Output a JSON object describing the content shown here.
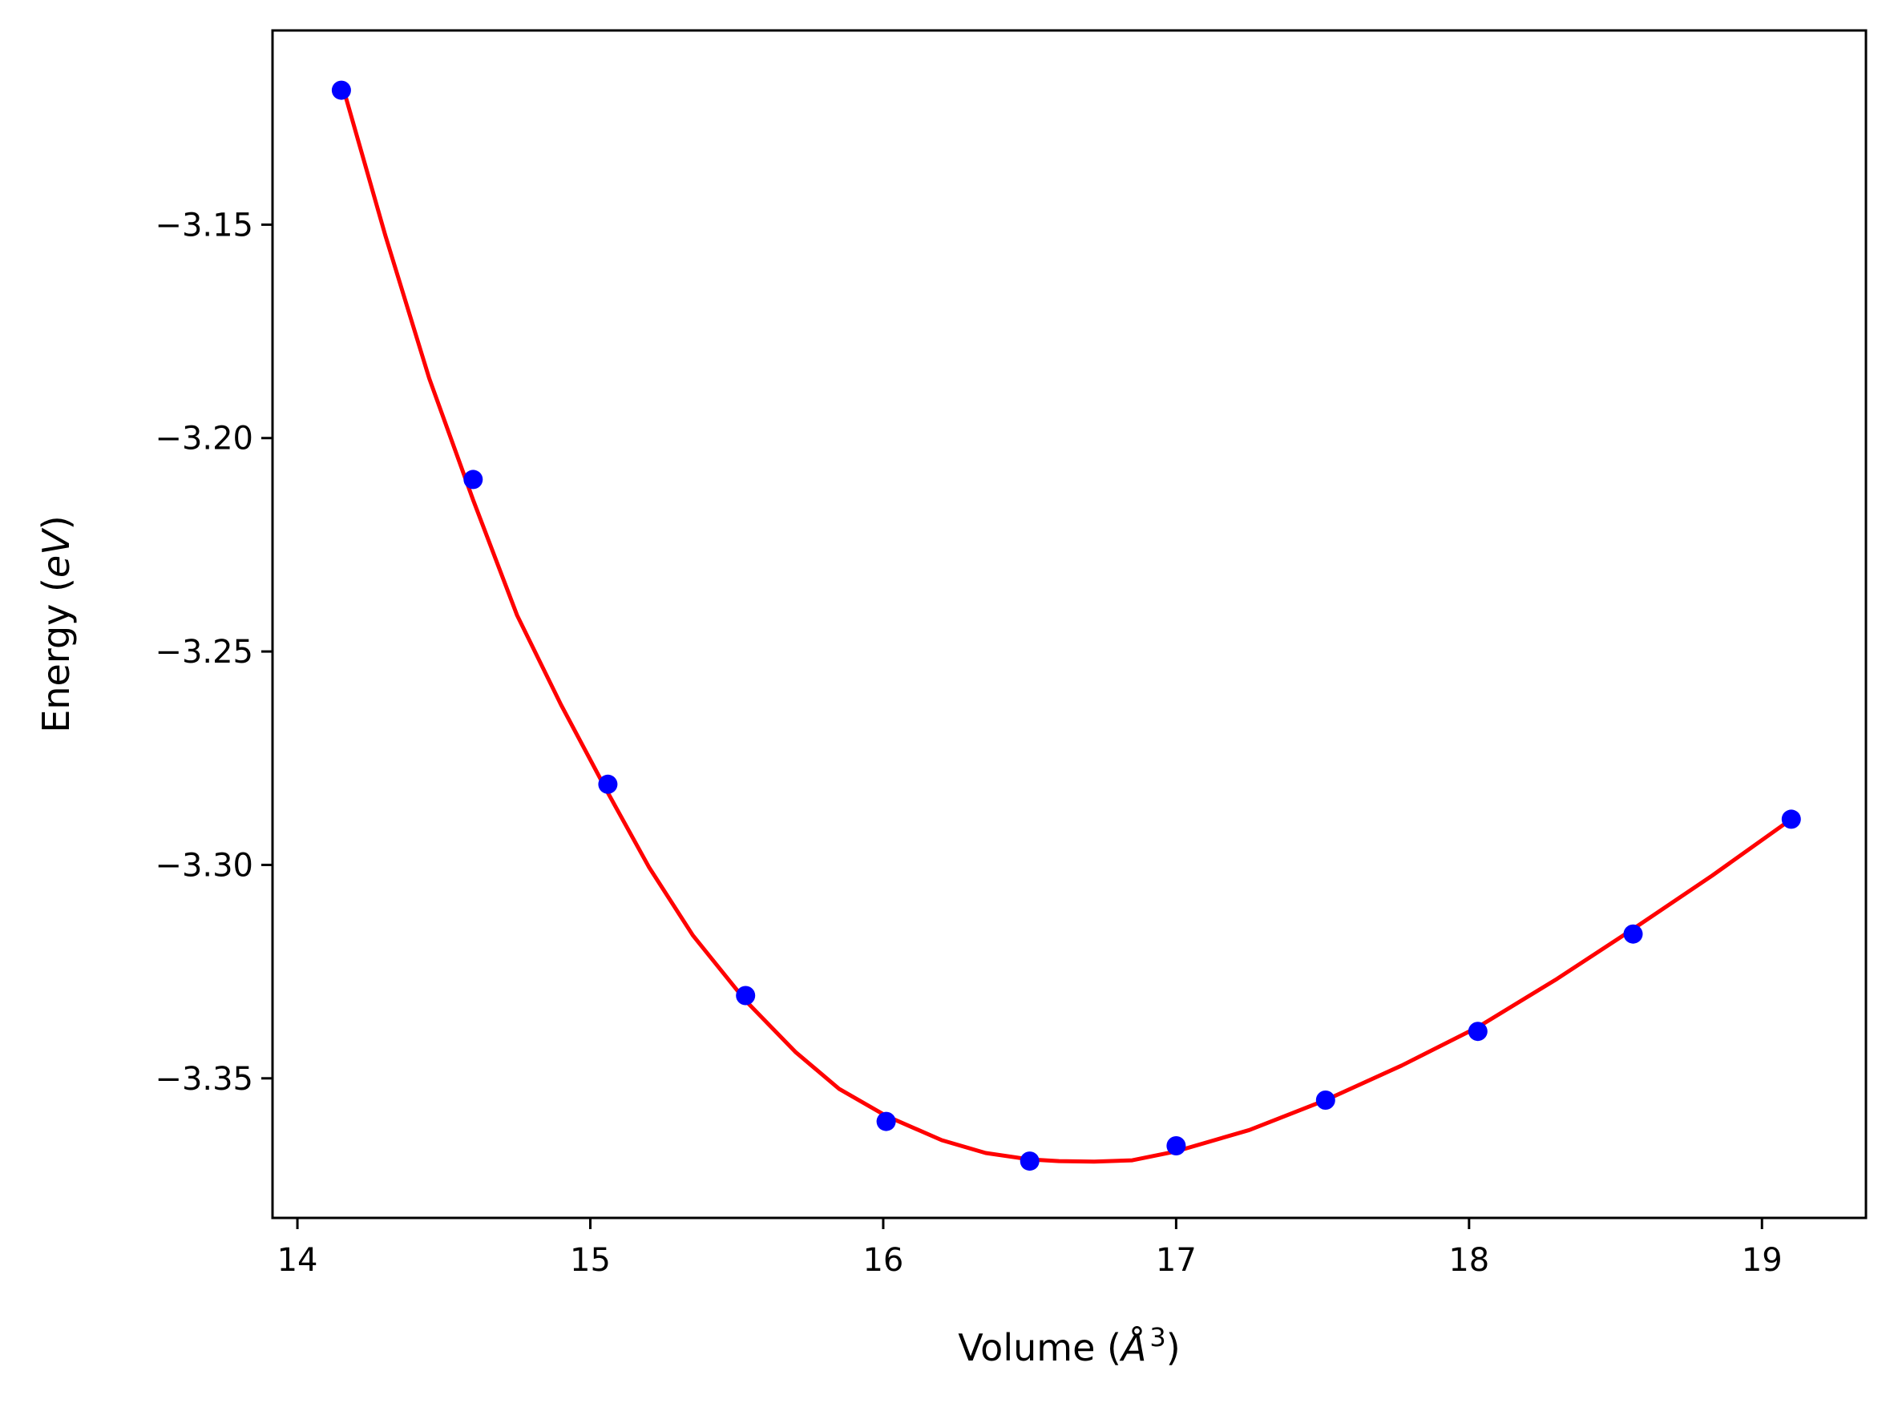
{
  "chart_data": {
    "type": "scatter",
    "title": "",
    "xlabel": "Volume (Å³)",
    "xlabel_parts": {
      "prefix": "Volume (",
      "symbol": "Å",
      "sup": "3",
      "suffix": ")"
    },
    "ylabel": "Energy (eV)",
    "ylabel_parts": {
      "prefix": "Energy (",
      "unit": "eV",
      "suffix": ")"
    },
    "xlim": [
      13.915,
      19.355
    ],
    "ylim": [
      -3.3827,
      -3.1045
    ],
    "xticks": [
      14,
      15,
      16,
      17,
      18,
      19
    ],
    "xtick_labels": [
      "14",
      "15",
      "16",
      "17",
      "18",
      "19"
    ],
    "yticks": [
      -3.35,
      -3.3,
      -3.25,
      -3.2,
      -3.15
    ],
    "ytick_labels": [
      "−3.35",
      "−3.30",
      "−3.25",
      "−3.20",
      "−3.15"
    ],
    "grid": false,
    "series": [
      {
        "kind": "points",
        "marker": "circle",
        "color": "#0000ff",
        "x": [
          14.15,
          14.6,
          15.06,
          15.53,
          16.01,
          16.5,
          17.0,
          17.51,
          18.03,
          18.56,
          19.1
        ],
        "y": [
          -3.1185,
          -3.2097,
          -3.2811,
          -3.3306,
          -3.3601,
          -3.3694,
          -3.3658,
          -3.3551,
          -3.339,
          -3.3162,
          -3.2893
        ]
      },
      {
        "kind": "fit",
        "color": "#ff0000",
        "x": [
          14.15,
          14.3,
          14.45,
          14.6,
          14.75,
          14.9,
          15.06,
          15.2,
          15.35,
          15.53,
          15.7,
          15.85,
          16.01,
          16.2,
          16.35,
          16.5,
          16.6,
          16.72,
          16.85,
          17.0,
          17.25,
          17.51,
          17.77,
          18.03,
          18.3,
          18.56,
          18.83,
          19.1
        ],
        "y": [
          -3.1165,
          -3.1525,
          -3.186,
          -3.2145,
          -3.2415,
          -3.2625,
          -3.2831,
          -3.3005,
          -3.3165,
          -3.3318,
          -3.3438,
          -3.3525,
          -3.3588,
          -3.3645,
          -3.3675,
          -3.369,
          -3.3694,
          -3.3695,
          -3.3692,
          -3.3671,
          -3.3621,
          -3.3551,
          -3.347,
          -3.338,
          -3.3267,
          -3.315,
          -3.3025,
          -3.2893
        ]
      }
    ]
  }
}
